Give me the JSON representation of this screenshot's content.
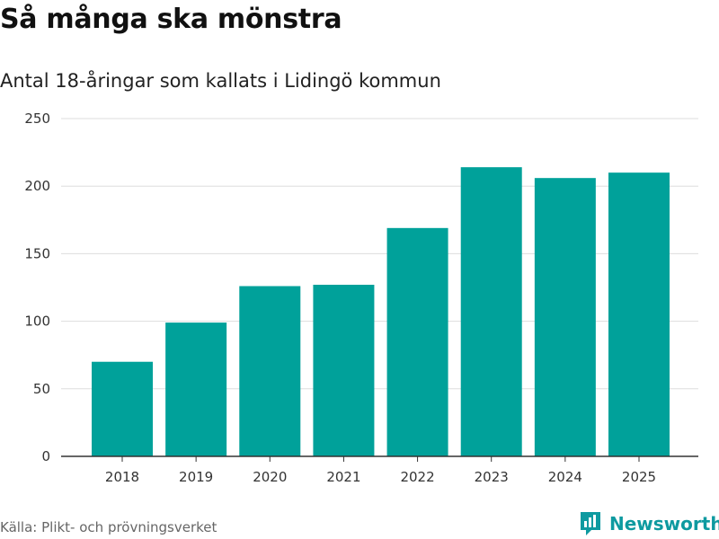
{
  "header": {
    "title": "Så många ska mönstra",
    "subtitle": "Antal 18-åringar som kallats i Lidingö kommun"
  },
  "footer": {
    "source": "Källa: Plikt- och prövningsverket",
    "brand": "Newsworthy"
  },
  "colors": {
    "bar": "#00a19a",
    "grid": "#dddddd",
    "axis": "#333333",
    "brand": "#0e9aa0"
  },
  "chart_data": {
    "type": "bar",
    "title": "Så många ska mönstra",
    "subtitle": "Antal 18-åringar som kallats i Lidingö kommun",
    "xlabel": "",
    "ylabel": "",
    "categories": [
      "2018",
      "2019",
      "2020",
      "2021",
      "2022",
      "2023",
      "2024",
      "2025"
    ],
    "values": [
      70,
      99,
      126,
      127,
      169,
      214,
      206,
      210
    ],
    "ylim": [
      0,
      250
    ],
    "yticks": [
      0,
      50,
      100,
      150,
      200,
      250
    ],
    "grid": true,
    "legend": "none"
  }
}
